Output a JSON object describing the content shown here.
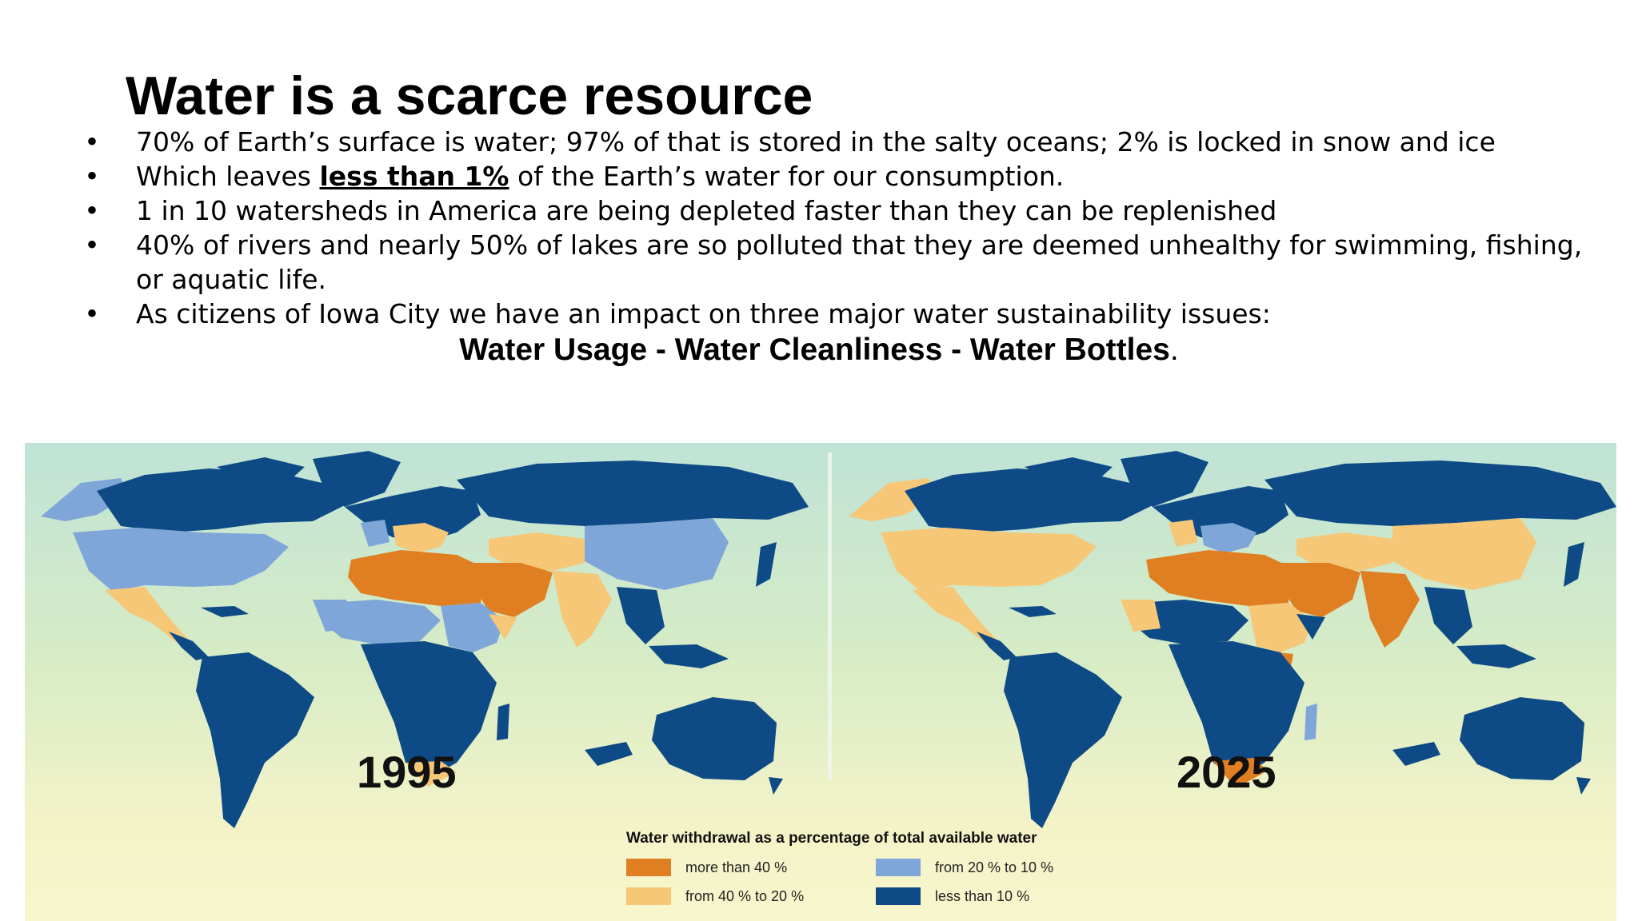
{
  "slide": {
    "title": "Water is a scarce resource",
    "bullet_glyph": "•",
    "bullets": [
      {
        "text": "70% of Earth’s surface is water; 97% of that is stored in the salty oceans; 2% is locked in snow and ice"
      },
      {
        "pre": "Which leaves ",
        "emph": "less than 1%",
        "post": " of the Earth’s water for our consumption."
      },
      {
        "text": "1 in 10 watersheds in America are being depleted faster than they can be replenished"
      },
      {
        "text": "40% of rivers and nearly 50% of lakes are so polluted that they are deemed unhealthy for swimming, fishing, or aquatic life."
      },
      {
        "text": "As citizens of Iowa City we have an impact on three major water sustainability issues:"
      }
    ],
    "tagline": {
      "bold": "Water Usage - Water Cleanliness - Water Bottles",
      "trail": "."
    }
  },
  "map_figure": {
    "left_map_year": "1995",
    "right_map_year": "2025",
    "legend_title": "Water withdrawal as a percentage of total available water",
    "legend": [
      {
        "label": "more than 40 %",
        "color": "#e07f22"
      },
      {
        "label": "from 40 % to 20 %",
        "color": "#f6c777"
      },
      {
        "label": "from 20 % to 10 %",
        "color": "#7fa6d8"
      },
      {
        "label": "less than 10 %",
        "color": "#0e4b86"
      }
    ]
  }
}
